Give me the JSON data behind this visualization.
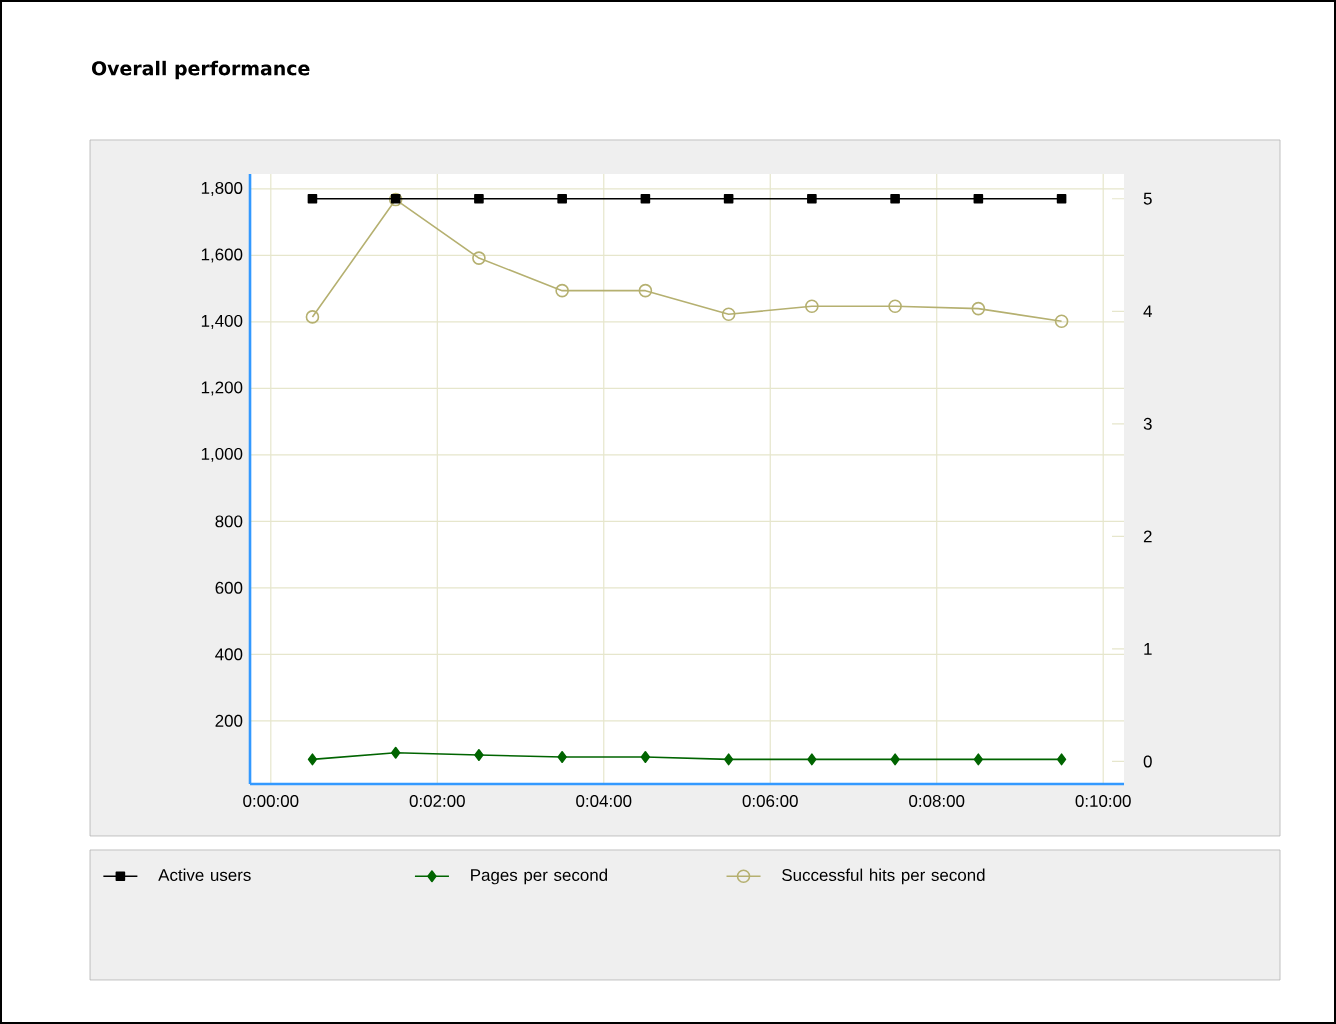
{
  "chart_data": {
    "type": "line",
    "title": "Overall performance",
    "x": [
      0.5,
      1.5,
      2.5,
      3.5,
      4.5,
      5.5,
      6.5,
      7.5,
      8.5,
      9.5
    ],
    "xlim": [
      -0.25,
      10.25
    ],
    "xticks": [
      {
        "value": 0,
        "label": "0:00:00"
      },
      {
        "value": 2,
        "label": "0:02:00"
      },
      {
        "value": 4,
        "label": "0:04:00"
      },
      {
        "value": 6,
        "label": "0:06:00"
      },
      {
        "value": 8,
        "label": "0:08:00"
      },
      {
        "value": 10,
        "label": "0:10:00"
      }
    ],
    "ylim": [
      10,
      1845
    ],
    "yticks": [
      {
        "value": 200,
        "label": "200"
      },
      {
        "value": 400,
        "label": "400"
      },
      {
        "value": 600,
        "label": "600"
      },
      {
        "value": 800,
        "label": "800"
      },
      {
        "value": 1000,
        "label": "1,000"
      },
      {
        "value": 1200,
        "label": "1,200"
      },
      {
        "value": 1400,
        "label": "1,400"
      },
      {
        "value": 1600,
        "label": "1,600"
      },
      {
        "value": 1800,
        "label": "1,800"
      }
    ],
    "y2lim": [
      -0.2,
      5.22
    ],
    "y2ticks": [
      0,
      1,
      2,
      3,
      4,
      5
    ],
    "grid": true,
    "legend": "bottom",
    "series": [
      {
        "name": "Active users",
        "axis": "y2",
        "marker": "square",
        "color": "#000000",
        "values": [
          5,
          5,
          5,
          5,
          5,
          5,
          5,
          5,
          5,
          5
        ]
      },
      {
        "name": "Pages per second",
        "axis": "y",
        "marker": "diamond",
        "color": "#006400",
        "values": [
          84,
          104,
          97,
          91,
          91,
          84,
          84,
          84,
          84,
          84
        ]
      },
      {
        "name": "Successful hits per second",
        "axis": "y",
        "marker": "circle",
        "color": "#b5b070",
        "values": [
          1415,
          1768,
          1592,
          1494,
          1494,
          1423,
          1447,
          1447,
          1440,
          1402
        ]
      }
    ]
  }
}
